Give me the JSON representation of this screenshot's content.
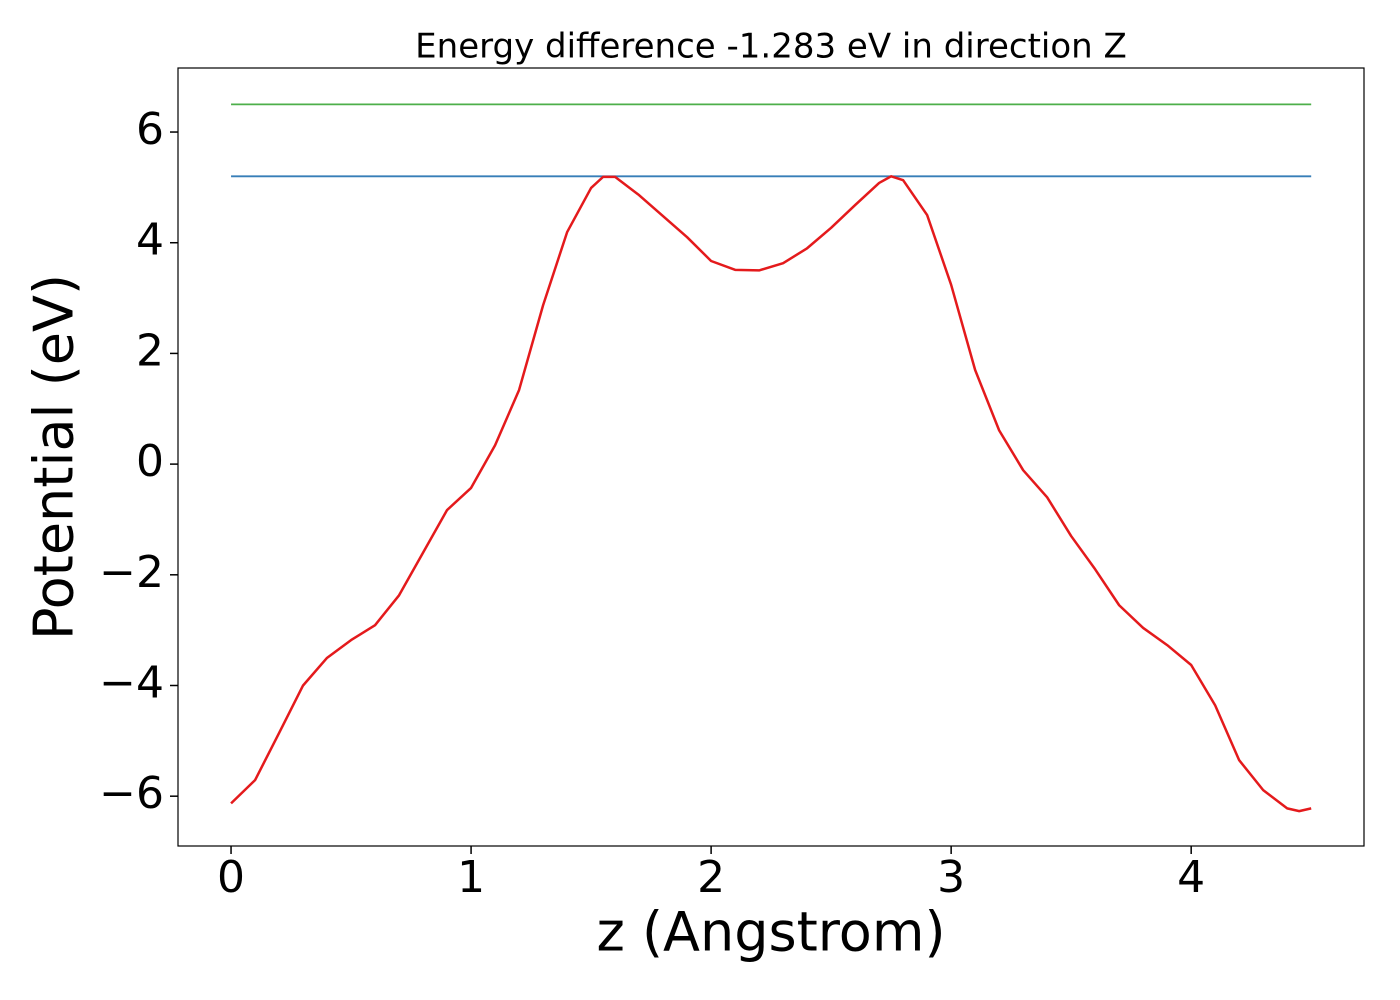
{
  "chart_data": {
    "type": "line",
    "title": "Energy difference -1.283 eV in direction Z",
    "xlabel": "z (Angstrom)",
    "ylabel": "Potential (eV)",
    "xlim": [
      -0.221,
      4.72
    ],
    "ylim": [
      -6.9,
      7.157
    ],
    "xticks": [
      0,
      1,
      2,
      3,
      4
    ],
    "yticks": [
      {
        "value": -6,
        "label": "−6"
      },
      {
        "value": -4,
        "label": "−4"
      },
      {
        "value": -2,
        "label": "−2"
      },
      0,
      2,
      4,
      6
    ],
    "grid": false,
    "series": [
      {
        "color": "#4daf4a",
        "x": [
          0,
          4.5
        ],
        "values": [
          6.5,
          6.5
        ]
      },
      {
        "color": "#377eb8",
        "x": [
          0,
          4.5
        ],
        "values": [
          5.2,
          5.2
        ]
      },
      {
        "color": "#e41a1c",
        "x": [
          0,
          0.1,
          0.2,
          0.3,
          0.4,
          0.5,
          0.6,
          0.7,
          0.8,
          0.9,
          1.0,
          1.1,
          1.2,
          1.3,
          1.4,
          1.5,
          1.55,
          1.6,
          1.7,
          1.8,
          1.9,
          2.0,
          2.1,
          2.2,
          2.3,
          2.4,
          2.5,
          2.6,
          2.7,
          2.75,
          2.8,
          2.9,
          3.0,
          3.1,
          3.2,
          3.3,
          3.4,
          3.5,
          3.6,
          3.7,
          3.8,
          3.9,
          4.0,
          4.1,
          4.2,
          4.3,
          4.4,
          4.45,
          4.5
        ],
        "values": [
          -6.13,
          -5.71,
          -4.86,
          -4.0,
          -3.5,
          -3.18,
          -2.91,
          -2.37,
          -1.6,
          -0.83,
          -0.43,
          0.34,
          1.34,
          2.87,
          4.19,
          4.99,
          5.19,
          5.19,
          4.86,
          4.48,
          4.1,
          3.67,
          3.51,
          3.5,
          3.63,
          3.9,
          4.27,
          4.68,
          5.08,
          5.2,
          5.13,
          4.5,
          3.24,
          1.7,
          0.61,
          -0.11,
          -0.6,
          -1.3,
          -1.9,
          -2.55,
          -2.96,
          -3.27,
          -3.63,
          -4.36,
          -5.35,
          -5.89,
          -6.22,
          -6.27,
          -6.22
        ]
      }
    ]
  }
}
